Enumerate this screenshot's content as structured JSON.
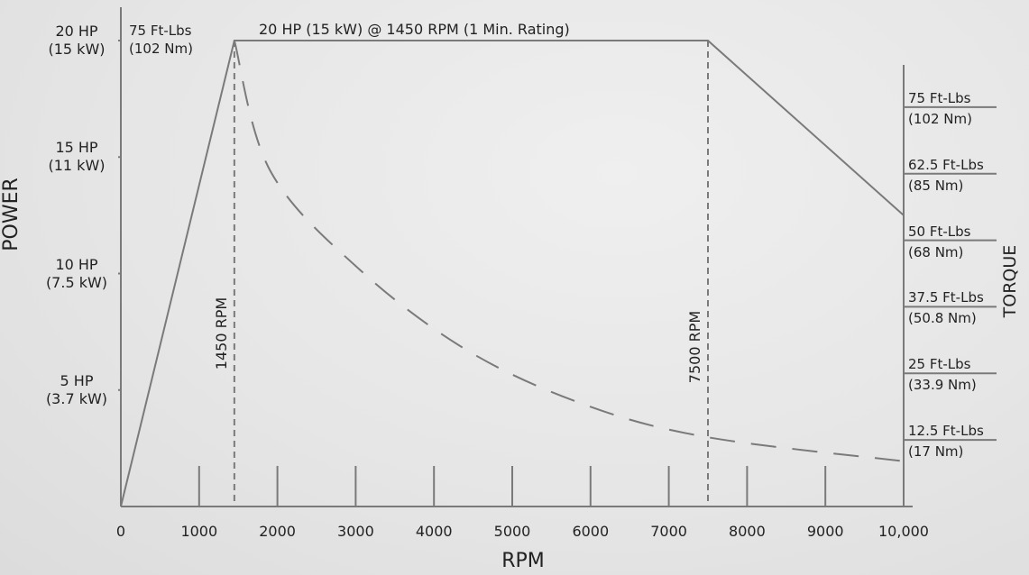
{
  "chart_data": {
    "type": "line",
    "xlabel": "RPM",
    "ylabel": "POWER",
    "y2label": "TORQUE",
    "xlim": [
      0,
      10000
    ],
    "xticks": [
      0,
      1000,
      2000,
      3000,
      4000,
      5000,
      6000,
      7000,
      8000,
      9000,
      {
        "value": 10000,
        "label": "10,000"
      }
    ],
    "ylim": [
      0,
      20
    ],
    "yticks": [
      {
        "value": 5,
        "label": "5 HP\n(3.7 kW)"
      },
      {
        "value": 10,
        "label": "10 HP\n(7.5 kW)"
      },
      {
        "value": 15,
        "label": "15 HP\n(11 kW)"
      },
      {
        "value": 20,
        "label": "20 HP\n(15 kW)"
      }
    ],
    "y2lim": [
      0,
      87.5
    ],
    "y2ticks": [
      {
        "value": 12.5,
        "label": "12.5 Ft-Lbs\n(17 Nm)"
      },
      {
        "value": 25,
        "label": "25 Ft-Lbs\n(33.9 Nm)"
      },
      {
        "value": 37.5,
        "label": "37.5 Ft-Lbs\n(50.8 Nm)"
      },
      {
        "value": 50,
        "label": "50 Ft-Lbs\n(68 Nm)"
      },
      {
        "value": 62.5,
        "label": "62.5 Ft-Lbs\n(85 Nm)"
      },
      {
        "value": 75,
        "label": "75 Ft-Lbs\n(102 Nm)"
      }
    ],
    "series": [
      {
        "color": "#7a7a7a",
        "dashed": false,
        "x": [
          0,
          1450,
          7500,
          10000
        ],
        "values": [
          0,
          20,
          20,
          12.5
        ]
      },
      {
        "color": "#7a7a7a",
        "dashed": true,
        "axis": "y2",
        "x": [
          1450,
          1910,
          3065,
          4450,
          5950,
          7500,
          10000
        ],
        "values": [
          87.5,
          63,
          44.3,
          29.1,
          19,
          13,
          8.5
        ]
      }
    ],
    "vlines": [
      {
        "value": 1450,
        "label": "1450 RPM"
      },
      {
        "value": 7500,
        "label": "7500 RPM"
      }
    ],
    "annotations": [
      "75 Ft-Lbs\n(102 Nm)",
      "20 HP (15 kW) @ 1450 RPM (1 Min. Rating)"
    ]
  }
}
